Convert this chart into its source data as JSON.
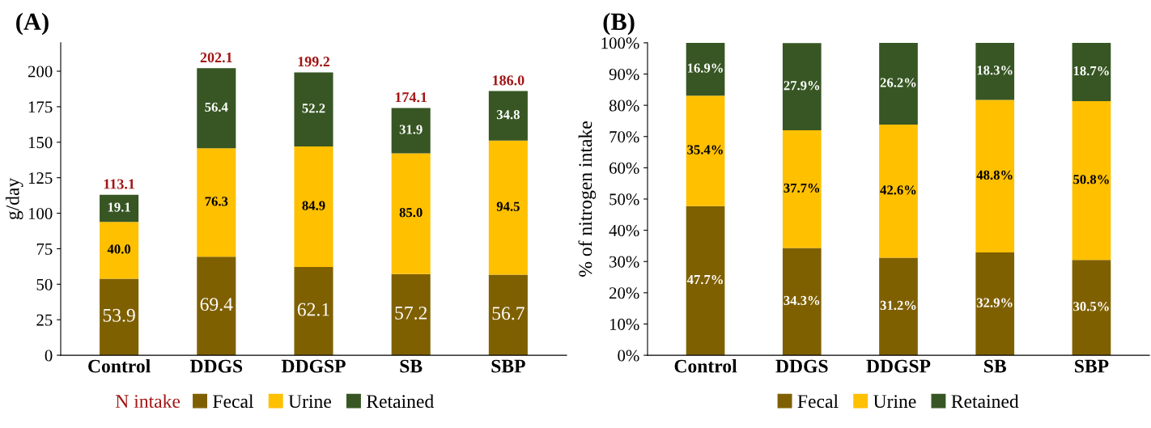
{
  "chart_data": [
    {
      "type": "bar",
      "title": "(A)",
      "ylabel": "g/day",
      "categories": [
        "Control",
        "DDGS",
        "DDGSP",
        "SB",
        "SBP"
      ],
      "stacked": true,
      "ylim": [
        0,
        220
      ],
      "yticks": [
        0,
        25,
        50,
        75,
        100,
        125,
        150,
        175,
        200
      ],
      "grid": false,
      "legend": "bottom",
      "annotations": [
        "N intake"
      ],
      "totals": [
        "113.1",
        "202.1",
        "199.2",
        "174.1",
        "186.0"
      ],
      "series": [
        {
          "name": "Fecal",
          "color": "#7f6000",
          "values": [
            53.9,
            69.4,
            62.1,
            57.2,
            56.7
          ],
          "value_labels": [
            "53.9",
            "69.4",
            "62.1",
            "57.2",
            "56.7"
          ]
        },
        {
          "name": "Urine",
          "color": "#ffc000",
          "values": [
            40.0,
            76.3,
            84.9,
            85.0,
            94.5
          ],
          "value_labels": [
            "40.0",
            "76.3",
            "84.9",
            "85.0",
            "94.5"
          ]
        },
        {
          "name": "Retained",
          "color": "#375623",
          "values": [
            19.1,
            56.4,
            52.2,
            31.9,
            34.8
          ],
          "value_labels": [
            "19.1",
            "56.4",
            "52.2",
            "31.9",
            "34.8"
          ]
        }
      ]
    },
    {
      "type": "bar",
      "title": "(B)",
      "ylabel": "% of nitrogen intake",
      "categories": [
        "Control",
        "DDGS",
        "DDGSP",
        "SB",
        "SBP"
      ],
      "stacked": true,
      "ylim": [
        0,
        100
      ],
      "yticks": [
        {
          "value": 0,
          "label": "0%"
        },
        {
          "value": 10,
          "label": "10%"
        },
        {
          "value": 20,
          "label": "20%"
        },
        {
          "value": 30,
          "label": "30%"
        },
        {
          "value": 40,
          "label": "40%"
        },
        {
          "value": 50,
          "label": "50%"
        },
        {
          "value": 60,
          "label": "60%"
        },
        {
          "value": 70,
          "label": "70%"
        },
        {
          "value": 80,
          "label": "80%"
        },
        {
          "value": 90,
          "label": "90%"
        },
        {
          "value": 100,
          "label": "100%"
        }
      ],
      "grid": false,
      "legend": "bottom",
      "series": [
        {
          "name": "Fecal",
          "color": "#7f6000",
          "values": [
            47.7,
            34.3,
            31.2,
            32.9,
            30.5
          ],
          "value_labels": [
            "47.7%",
            "34.3%",
            "31.2%",
            "32.9%",
            "30.5%"
          ]
        },
        {
          "name": "Urine",
          "color": "#ffc000",
          "values": [
            35.4,
            37.7,
            42.6,
            48.8,
            50.8
          ],
          "value_labels": [
            "35.4%",
            "37.7%",
            "42.6%",
            "48.8%",
            "50.8%"
          ]
        },
        {
          "name": "Retained",
          "color": "#375623",
          "values": [
            16.9,
            27.9,
            26.2,
            18.3,
            18.7
          ],
          "value_labels": [
            "16.9%",
            "27.9%",
            "26.2%",
            "18.3%",
            "18.7%"
          ]
        }
      ]
    }
  ]
}
